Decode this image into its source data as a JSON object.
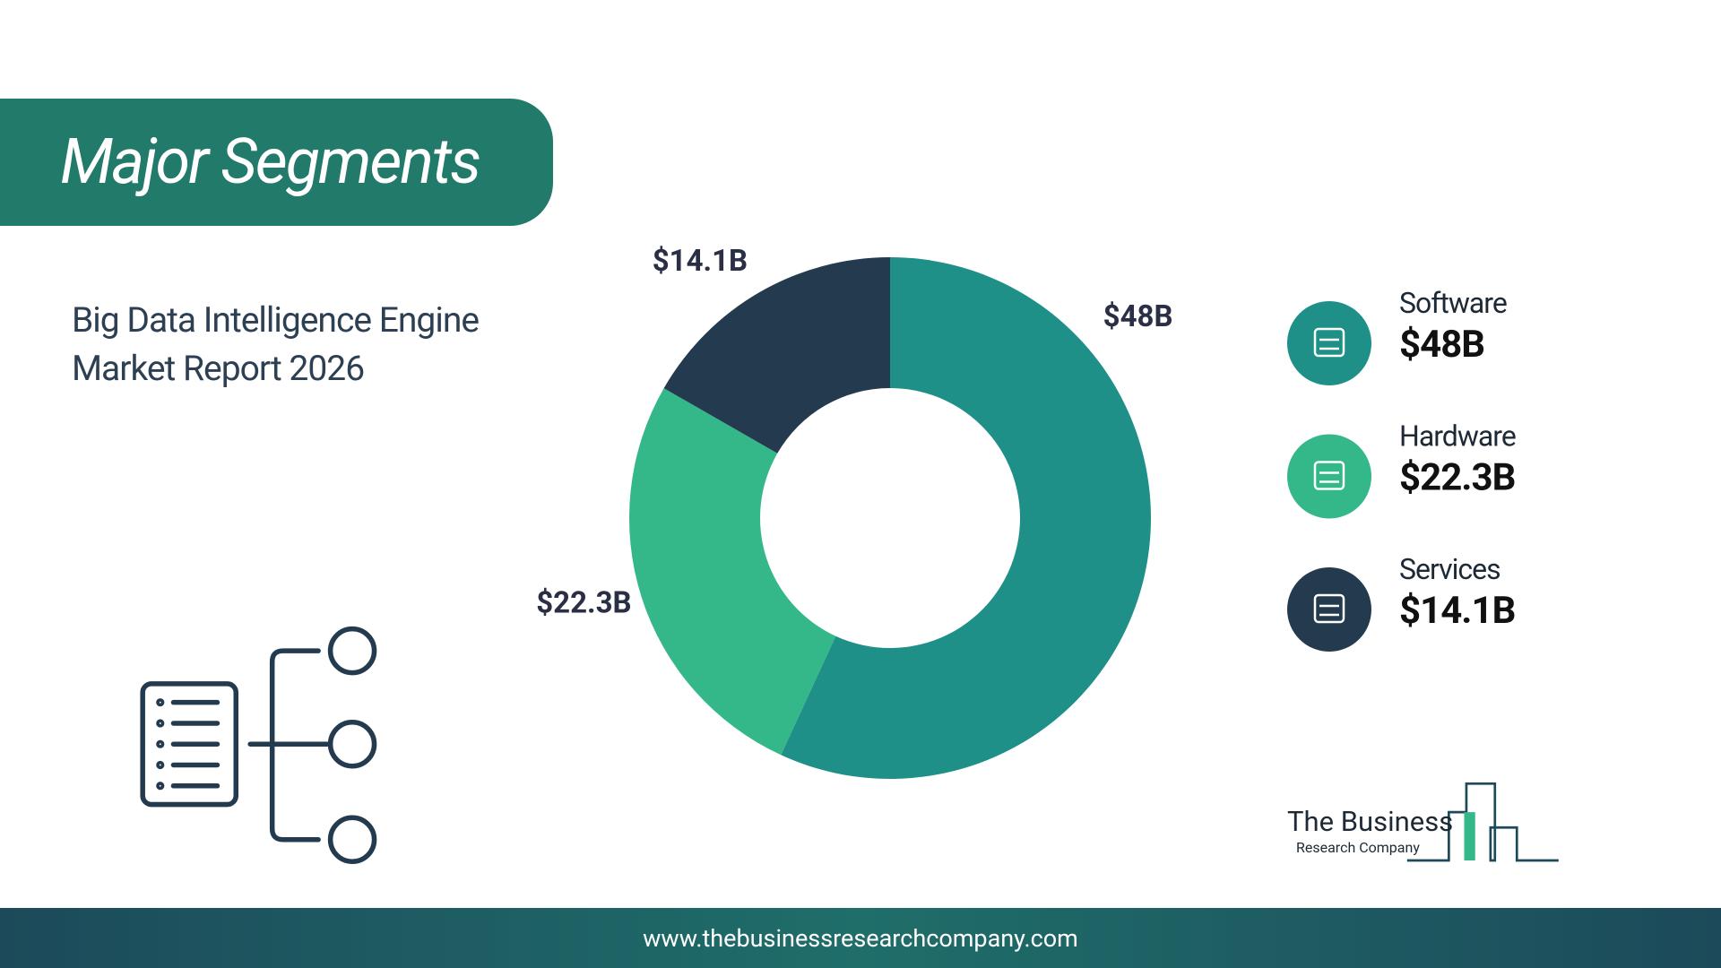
{
  "header": {
    "title": "Major Segments",
    "subtitle": "Big Data Intelligence Engine Market Report 2026"
  },
  "chart_data": {
    "type": "donut",
    "categories": [
      "Software",
      "Hardware",
      "Services"
    ],
    "values": [
      48,
      22.3,
      14.1
    ],
    "value_labels": [
      "$48B",
      "$22.3B",
      "$14.1B"
    ],
    "colors": [
      "#1e9088",
      "#34b889",
      "#243a4f"
    ]
  },
  "logo": {
    "line1": "The Business",
    "line2": "Research Company"
  },
  "footer": {
    "url": "www.thebusinessresearchcompany.com"
  }
}
